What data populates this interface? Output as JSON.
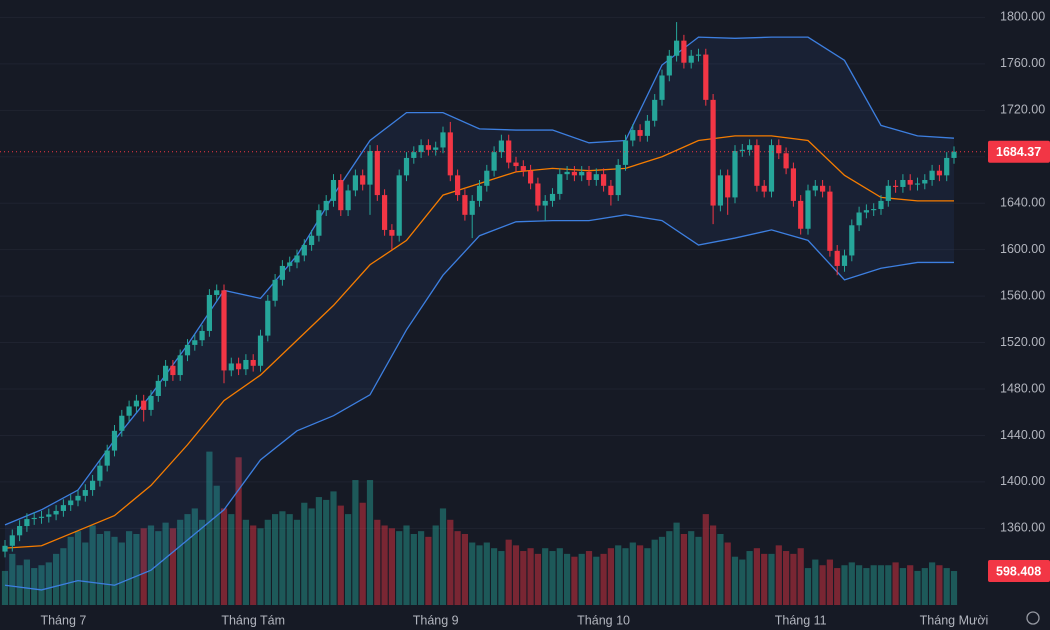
{
  "chart_data": {
    "type": "candlestick",
    "categories": [
      null,
      null,
      null,
      null,
      null,
      null,
      null,
      null,
      "Tháng 7",
      null,
      null,
      null,
      null,
      null,
      null,
      null,
      null,
      null,
      null,
      null,
      null,
      null,
      null,
      null,
      null,
      null,
      null,
      null,
      null,
      null,
      null,
      null,
      null,
      null,
      "Tháng Tám",
      null,
      null,
      null,
      null,
      null,
      null,
      null,
      null,
      null,
      null,
      null,
      null,
      null,
      null,
      null,
      null,
      null,
      null,
      null,
      null,
      null,
      null,
      null,
      null,
      "Tháng 9",
      null,
      null,
      null,
      null,
      null,
      null,
      null,
      null,
      null,
      null,
      null,
      null,
      null,
      null,
      null,
      null,
      null,
      null,
      null,
      null,
      null,
      null,
      "Tháng 10",
      null,
      null,
      null,
      null,
      null,
      null,
      null,
      null,
      null,
      null,
      null,
      null,
      null,
      null,
      null,
      null,
      null,
      null,
      null,
      null,
      null,
      null,
      null,
      null,
      null,
      null,
      "Tháng 11",
      null,
      null,
      null,
      null,
      null,
      null,
      null,
      null,
      null,
      null,
      null,
      null,
      null,
      null,
      null,
      null,
      null,
      null,
      null,
      null,
      "Tháng Mười"
    ],
    "open": [
      1340,
      1345,
      1354,
      1362,
      1368,
      1369,
      1370,
      1372,
      1375,
      1380,
      1384,
      1388,
      1393,
      1401,
      1414,
      1427,
      1444,
      1457,
      1465,
      1470,
      1462,
      1474,
      1487,
      1500,
      1492,
      1509,
      1518,
      1522,
      1530,
      1561,
      1565,
      1496,
      1502,
      1497,
      1505,
      1500,
      1526,
      1556,
      1574,
      1586,
      1589,
      1595,
      1604,
      1612,
      1634,
      1642,
      1660,
      1634,
      1651,
      1664,
      1656,
      1685,
      1647,
      1617,
      1612,
      1664,
      1679,
      1684,
      1690,
      1686,
      1688,
      1701,
      1664,
      1647,
      1630,
      1642,
      1655,
      1668,
      1684,
      1694,
      1675,
      1672,
      1668,
      1657,
      1638,
      1642,
      1648,
      1665,
      1667,
      1664,
      1667,
      1660,
      1665,
      1655,
      1647,
      1673,
      1694,
      1703,
      1698,
      1711,
      1729,
      1750,
      1767,
      1780,
      1761,
      1767,
      1768,
      1729,
      1638,
      1664,
      1645,
      1685,
      1686,
      1690,
      1655,
      1650,
      1690,
      1683,
      1670,
      1642,
      1618,
      1651,
      1655,
      1650,
      1599,
      1586,
      1595,
      1621,
      1632,
      1634,
      1635,
      1642,
      1655,
      1654,
      1660,
      1656,
      1657,
      1660,
      1668,
      1664,
      1679
    ],
    "high": [
      1350,
      1359,
      1367,
      1373,
      1374,
      1375,
      1377,
      1380,
      1385,
      1389,
      1393,
      1398,
      1406,
      1419,
      1432,
      1449,
      1462,
      1470,
      1475,
      1475,
      1479,
      1492,
      1505,
      1505,
      1514,
      1523,
      1527,
      1535,
      1566,
      1570,
      1570,
      1507,
      1507,
      1510,
      1510,
      1531,
      1561,
      1579,
      1591,
      1594,
      1600,
      1609,
      1617,
      1639,
      1647,
      1665,
      1665,
      1656,
      1669,
      1669,
      1690,
      1690,
      1652,
      1622,
      1669,
      1684,
      1689,
      1695,
      1695,
      1693,
      1706,
      1710,
      1669,
      1652,
      1647,
      1660,
      1673,
      1689,
      1699,
      1699,
      1680,
      1677,
      1673,
      1662,
      1647,
      1653,
      1670,
      1672,
      1672,
      1672,
      1672,
      1670,
      1670,
      1660,
      1678,
      1699,
      1708,
      1708,
      1716,
      1734,
      1755,
      1772,
      1796,
      1785,
      1772,
      1773,
      1773,
      1734,
      1669,
      1669,
      1690,
      1691,
      1695,
      1695,
      1660,
      1695,
      1695,
      1688,
      1675,
      1647,
      1656,
      1660,
      1660,
      1655,
      1604,
      1600,
      1626,
      1637,
      1639,
      1640,
      1647,
      1660,
      1660,
      1665,
      1665,
      1662,
      1665,
      1673,
      1673,
      1684,
      1689
    ],
    "low": [
      1335,
      1340,
      1349,
      1357,
      1363,
      1364,
      1365,
      1367,
      1370,
      1375,
      1379,
      1383,
      1388,
      1396,
      1409,
      1422,
      1439,
      1452,
      1460,
      1452,
      1457,
      1469,
      1482,
      1487,
      1487,
      1504,
      1513,
      1517,
      1525,
      1556,
      1485,
      1491,
      1492,
      1492,
      1495,
      1495,
      1521,
      1551,
      1569,
      1581,
      1584,
      1590,
      1599,
      1607,
      1629,
      1637,
      1629,
      1629,
      1646,
      1651,
      1630,
      1642,
      1612,
      1600,
      1607,
      1659,
      1674,
      1679,
      1681,
      1681,
      1683,
      1659,
      1642,
      1625,
      1610,
      1637,
      1650,
      1663,
      1679,
      1670,
      1667,
      1663,
      1652,
      1633,
      1625,
      1637,
      1643,
      1660,
      1659,
      1659,
      1655,
      1655,
      1650,
      1638,
      1642,
      1668,
      1689,
      1693,
      1693,
      1706,
      1724,
      1745,
      1762,
      1756,
      1756,
      1762,
      1724,
      1622,
      1633,
      1630,
      1640,
      1680,
      1681,
      1650,
      1645,
      1645,
      1678,
      1665,
      1637,
      1613,
      1613,
      1646,
      1645,
      1594,
      1578,
      1581,
      1590,
      1616,
      1627,
      1629,
      1630,
      1637,
      1649,
      1649,
      1651,
      1651,
      1652,
      1655,
      1659,
      1659,
      1674
    ],
    "close": [
      1345,
      1354,
      1362,
      1368,
      1369,
      1370,
      1372,
      1375,
      1380,
      1384,
      1388,
      1393,
      1401,
      1414,
      1427,
      1444,
      1457,
      1465,
      1470,
      1462,
      1474,
      1487,
      1500,
      1492,
      1509,
      1518,
      1522,
      1530,
      1561,
      1565,
      1496,
      1502,
      1497,
      1505,
      1500,
      1526,
      1556,
      1574,
      1586,
      1589,
      1595,
      1604,
      1612,
      1634,
      1642,
      1660,
      1634,
      1651,
      1664,
      1656,
      1685,
      1647,
      1617,
      1612,
      1664,
      1679,
      1684,
      1690,
      1686,
      1688,
      1701,
      1664,
      1647,
      1630,
      1642,
      1655,
      1668,
      1684,
      1694,
      1675,
      1672,
      1668,
      1657,
      1638,
      1642,
      1648,
      1665,
      1667,
      1664,
      1667,
      1660,
      1665,
      1655,
      1647,
      1673,
      1694,
      1703,
      1698,
      1711,
      1729,
      1750,
      1767,
      1780,
      1761,
      1767,
      1768,
      1729,
      1638,
      1664,
      1645,
      1685,
      1686,
      1690,
      1655,
      1650,
      1690,
      1683,
      1670,
      1642,
      1618,
      1651,
      1655,
      1650,
      1599,
      1586,
      1595,
      1621,
      1632,
      1634,
      1635,
      1642,
      1655,
      1654,
      1660,
      1656,
      1657,
      1660,
      1668,
      1664,
      1679,
      1684.37
    ],
    "volume": [
      600,
      900,
      700,
      800,
      650,
      700,
      750,
      900,
      1000,
      1200,
      1300,
      1100,
      1400,
      1250,
      1300,
      1200,
      1100,
      1300,
      1250,
      1350,
      1400,
      1300,
      1450,
      1350,
      1500,
      1600,
      1700,
      1500,
      2700,
      2100,
      1700,
      1600,
      2600,
      1500,
      1400,
      1350,
      1500,
      1600,
      1650,
      1600,
      1500,
      1800,
      1700,
      1900,
      1850,
      2000,
      1750,
      1600,
      2200,
      1800,
      2200,
      1500,
      1400,
      1350,
      1300,
      1400,
      1250,
      1300,
      1200,
      1400,
      1700,
      1500,
      1300,
      1250,
      1100,
      1050,
      1100,
      1000,
      950,
      1150,
      1050,
      950,
      1000,
      900,
      1000,
      950,
      1000,
      900,
      850,
      900,
      950,
      850,
      900,
      1000,
      1050,
      1000,
      1100,
      1050,
      1000,
      1150,
      1200,
      1300,
      1450,
      1250,
      1300,
      1200,
      1600,
      1400,
      1250,
      1100,
      850,
      800,
      950,
      1000,
      900,
      900,
      1050,
      950,
      900,
      1000,
      650,
      800,
      700,
      800,
      650,
      700,
      750,
      700,
      650,
      700,
      700,
      700,
      750,
      650,
      700,
      600,
      650,
      750,
      700,
      650,
      598.408
    ],
    "volume_lim": [
      0,
      10650
    ],
    "ylim": [
      1294,
      1815
    ],
    "yticks": [
      {
        "value": 1360,
        "label": "1360.00"
      },
      {
        "value": 1400,
        "label": "1400.00"
      },
      {
        "value": 1440,
        "label": "1440.00"
      },
      {
        "value": 1480,
        "label": "1480.00"
      },
      {
        "value": 1520,
        "label": "1520.00"
      },
      {
        "value": 1560,
        "label": "1560.00"
      },
      {
        "value": 1600,
        "label": "1600.00"
      },
      {
        "value": 1640,
        "label": "1640.00"
      },
      {
        "value": 1680,
        "label": "1680.00"
      },
      {
        "value": 1720,
        "label": "1720.00"
      },
      {
        "value": 1760,
        "label": "1760.00"
      },
      {
        "value": 1800,
        "label": "1800.00"
      }
    ],
    "grid": true,
    "up_color": "#26a69a",
    "down_color": "#f23645",
    "bands": {
      "x": [
        0,
        5,
        10,
        15,
        20,
        25,
        30,
        35,
        40,
        45,
        50,
        55,
        60,
        65,
        70,
        75,
        80,
        85,
        90,
        95,
        100,
        105,
        110,
        115,
        120,
        125,
        130
      ],
      "upper": [
        1363,
        1376,
        1393,
        1436,
        1475,
        1518,
        1565,
        1558,
        1595,
        1647,
        1694,
        1718,
        1718,
        1704,
        1703,
        1703,
        1692,
        1694,
        1759,
        1783,
        1782,
        1783,
        1783,
        1763,
        1707,
        1698,
        1696
      ],
      "middle": [
        1343,
        1345,
        1358,
        1371,
        1397,
        1432,
        1470,
        1492,
        1522,
        1552,
        1587,
        1608,
        1647,
        1657,
        1667,
        1670,
        1668,
        1670,
        1680,
        1694,
        1698,
        1698,
        1694,
        1664,
        1645,
        1642,
        1642
      ],
      "lower": [
        1311,
        1307,
        1315,
        1311,
        1324,
        1350,
        1376,
        1419,
        1444,
        1457,
        1475,
        1531,
        1578,
        1612,
        1624,
        1625,
        1625,
        1630,
        1625,
        1604,
        1610,
        1617,
        1608,
        1574,
        1584,
        1589,
        1589
      ],
      "band_color": "#3d7fe0",
      "middle_color": "#f57c00"
    }
  }
}
